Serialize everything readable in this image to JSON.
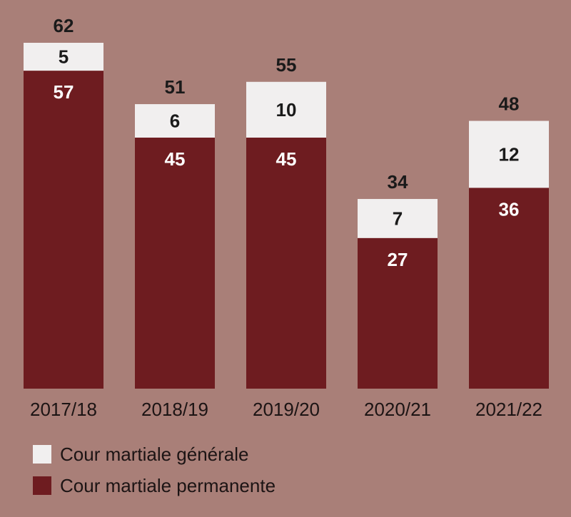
{
  "colors": {
    "background": "#a97f78",
    "permanente": "#6e1c20",
    "generale": "#f1efef",
    "label_on_dark": "#ffffff",
    "label_on_light": "#1a1a1a",
    "axis_text": "#1c1414"
  },
  "legend": [
    {
      "key": "generale",
      "label": "Cour martiale générale"
    },
    {
      "key": "permanente",
      "label": "Cour martiale permanente"
    }
  ],
  "chart_data": {
    "type": "bar",
    "stacked": true,
    "categories": [
      "2017/18",
      "2018/19",
      "2019/20",
      "2020/21",
      "2021/22"
    ],
    "series": [
      {
        "name": "Cour martiale permanente",
        "values": [
          57,
          45,
          45,
          27,
          36
        ]
      },
      {
        "name": "Cour martiale générale",
        "values": [
          5,
          6,
          10,
          7,
          12
        ]
      }
    ],
    "totals": [
      62,
      51,
      55,
      34,
      48
    ],
    "title": "",
    "xlabel": "",
    "ylabel": "",
    "ylim": [
      0,
      62
    ],
    "grid": false,
    "legend_position": "bottom-left"
  }
}
